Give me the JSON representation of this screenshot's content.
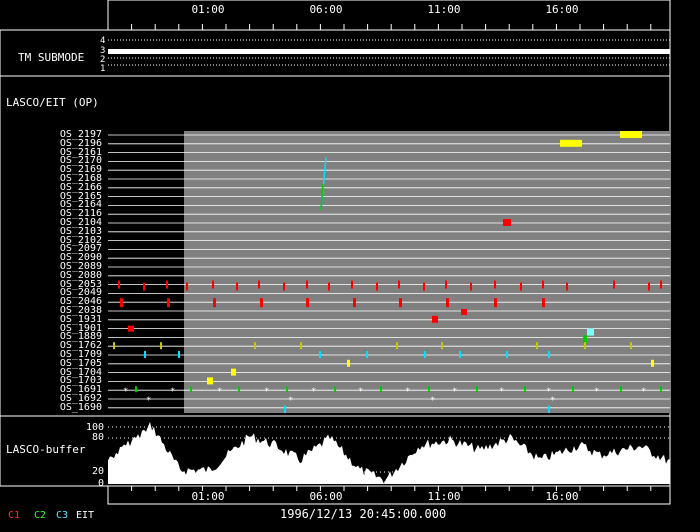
{
  "top_axis": {
    "times": [
      "01:00",
      "06:00",
      "11:00",
      "16:00"
    ]
  },
  "bottom_axis": {
    "times": [
      "01:00",
      "06:00",
      "11:00",
      "16:00"
    ]
  },
  "tm_submode": {
    "label": "TM SUBMODE",
    "levels": [
      "4",
      "3",
      "2",
      "1"
    ]
  },
  "lasco_eit": {
    "label": "LASCO/EIT (OP)"
  },
  "os_rows": [
    "OS_2197",
    "OS_2196",
    "OS_2161",
    "OS_2170",
    "OS_2169",
    "OS_2168",
    "OS_2166",
    "OS_2165",
    "OS_2164",
    "OS_2116",
    "OS_2104",
    "OS_2103",
    "OS_2102",
    "OS_2097",
    "OS_2090",
    "OS_2089",
    "OS_2080",
    "OS_2053",
    "OS_2049",
    "OS_2046",
    "OS_2038",
    "OS_1931",
    "OS_1901",
    "OS_1889",
    "OS_1762",
    "OS_1709",
    "OS_1705",
    "OS_1704",
    "OS_1703",
    "OS_1691",
    "OS_1692",
    "OS_1690"
  ],
  "lasco_buffer": {
    "label": "LASCO-buffer",
    "ticks": [
      "100",
      "80",
      "20",
      "0"
    ]
  },
  "legend": [
    {
      "name": "C1",
      "color": "#ff3030"
    },
    {
      "name": "C2",
      "color": "#30ff30"
    },
    {
      "name": "C3",
      "color": "#60e0ff"
    },
    {
      "name": "EIT",
      "color": "#ffffff"
    }
  ],
  "footer": {
    "datetime": "1996/12/13 20:45:00.000"
  },
  "colors": {
    "panel_gray": "#808080",
    "frame": "#ffffff",
    "c1": "#ff0000",
    "c2": "#00cc00",
    "c3": "#00e0ff",
    "eit": "#ffffff",
    "yellow": "#ffff00"
  }
}
